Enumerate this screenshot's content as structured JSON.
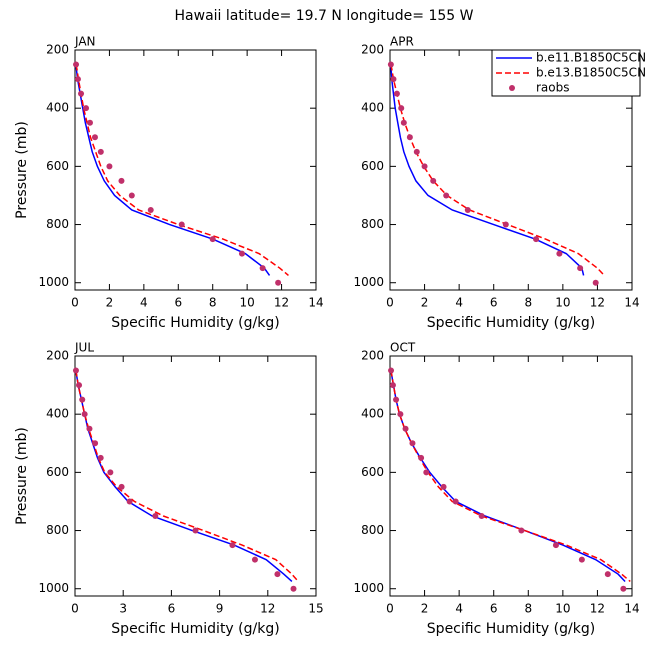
{
  "title": "Hawaii  latitude= 19.7 N longitude= 155 W",
  "chart_data": [
    {
      "type": "line",
      "title": "JAN",
      "xlabel": "Specific Humidity (g/kg)",
      "ylabel": "Pressure (mb)",
      "xlim": [
        0,
        14
      ],
      "xticks": [
        0,
        2,
        4,
        6,
        8,
        10,
        12,
        14
      ],
      "ylim": [
        1025,
        200
      ],
      "yticks": [
        200,
        400,
        600,
        800,
        1000
      ],
      "series": [
        {
          "color": "#0000ff",
          "style": "solid",
          "y": [
            250,
            300,
            350,
            400,
            450,
            500,
            550,
            600,
            650,
            700,
            750,
            800,
            850,
            900,
            950,
            975
          ],
          "x": [
            0.05,
            0.15,
            0.3,
            0.45,
            0.6,
            0.8,
            1.0,
            1.3,
            1.7,
            2.3,
            3.3,
            5.5,
            8.0,
            9.9,
            11.0,
            11.3
          ]
        },
        {
          "color": "#ff0000",
          "style": "dashed",
          "y": [
            250,
            300,
            350,
            400,
            450,
            500,
            550,
            600,
            650,
            700,
            750,
            800,
            850,
            900,
            950,
            975
          ],
          "x": [
            0.07,
            0.2,
            0.35,
            0.5,
            0.7,
            0.9,
            1.2,
            1.5,
            1.9,
            2.6,
            3.7,
            6.0,
            8.6,
            10.7,
            11.9,
            12.4
          ]
        },
        {
          "color": "#c0306a",
          "style": "dots",
          "y": [
            250,
            300,
            350,
            400,
            450,
            500,
            550,
            600,
            650,
            700,
            750,
            800,
            850,
            900,
            950,
            1000
          ],
          "x": [
            0.06,
            0.17,
            0.35,
            0.64,
            0.87,
            1.16,
            1.5,
            2.0,
            2.7,
            3.3,
            4.4,
            6.2,
            8.0,
            9.7,
            10.9,
            11.8
          ]
        }
      ]
    },
    {
      "type": "line",
      "title": "APR",
      "xlabel": "Specific Humidity (g/kg)",
      "xlim": [
        0,
        14
      ],
      "xticks": [
        0,
        2,
        4,
        6,
        8,
        10,
        12,
        14
      ],
      "ylim": [
        1025,
        200
      ],
      "yticks": [
        200,
        400,
        600,
        800,
        1000
      ],
      "legend": "upper right",
      "series": [
        {
          "name": "b.e11.B1850C5CN",
          "color": "#0000ff",
          "style": "solid",
          "y": [
            250,
            300,
            350,
            400,
            450,
            500,
            550,
            600,
            650,
            700,
            750,
            800,
            850,
            900,
            950,
            975
          ],
          "x": [
            0.05,
            0.1,
            0.2,
            0.3,
            0.45,
            0.6,
            0.8,
            1.1,
            1.5,
            2.2,
            3.6,
            6.0,
            8.4,
            10.2,
            11.1,
            11.2
          ]
        },
        {
          "name": "b.e13.B1850C5CN",
          "color": "#ff0000",
          "style": "dashed",
          "y": [
            250,
            300,
            350,
            400,
            450,
            500,
            550,
            600,
            650,
            700,
            750,
            800,
            850,
            900,
            950,
            975
          ],
          "x": [
            0.06,
            0.2,
            0.4,
            0.6,
            0.85,
            1.15,
            1.5,
            1.95,
            2.5,
            3.3,
            4.6,
            6.8,
            9.0,
            10.9,
            12.0,
            12.4
          ]
        },
        {
          "name": "raobs",
          "color": "#c0306a",
          "style": "dots",
          "y": [
            250,
            300,
            350,
            400,
            450,
            500,
            550,
            600,
            650,
            700,
            750,
            800,
            850,
            900,
            950,
            1000
          ],
          "x": [
            0.05,
            0.2,
            0.4,
            0.65,
            0.8,
            1.15,
            1.55,
            2.0,
            2.5,
            3.25,
            4.5,
            6.7,
            8.45,
            9.8,
            11.0,
            11.9
          ]
        }
      ]
    },
    {
      "type": "line",
      "title": "JUL",
      "xlabel": "Specific Humidity (g/kg)",
      "ylabel": "Pressure (mb)",
      "xlim": [
        0,
        15
      ],
      "xticks": [
        0,
        3,
        6,
        9,
        12,
        15
      ],
      "ylim": [
        1025,
        200
      ],
      "yticks": [
        200,
        400,
        600,
        800,
        1000
      ],
      "series": [
        {
          "color": "#0000ff",
          "style": "solid",
          "y": [
            250,
            300,
            350,
            400,
            450,
            500,
            550,
            600,
            650,
            700,
            750,
            800,
            850,
            900,
            950,
            975
          ],
          "x": [
            0.05,
            0.2,
            0.4,
            0.6,
            0.8,
            1.1,
            1.4,
            1.8,
            2.5,
            3.3,
            4.8,
            7.3,
            9.9,
            11.9,
            13.0,
            13.5
          ]
        },
        {
          "color": "#ff0000",
          "style": "dashed",
          "y": [
            250,
            300,
            350,
            400,
            450,
            500,
            550,
            600,
            650,
            700,
            750,
            800,
            850,
            900,
            950,
            975
          ],
          "x": [
            0.06,
            0.2,
            0.4,
            0.6,
            0.85,
            1.15,
            1.45,
            1.85,
            2.6,
            3.7,
            5.5,
            8.0,
            10.4,
            12.5,
            13.5,
            13.9
          ]
        },
        {
          "color": "#c0306a",
          "style": "dots",
          "y": [
            250,
            300,
            350,
            400,
            450,
            500,
            550,
            600,
            650,
            700,
            750,
            800,
            850,
            900,
            950,
            1000
          ],
          "x": [
            0.06,
            0.25,
            0.45,
            0.6,
            0.9,
            1.25,
            1.6,
            2.2,
            2.9,
            3.4,
            5.0,
            7.5,
            9.8,
            11.2,
            12.6,
            13.6
          ]
        }
      ]
    },
    {
      "type": "line",
      "title": "OCT",
      "xlabel": "Specific Humidity (g/kg)",
      "xlim": [
        0,
        14
      ],
      "xticks": [
        0,
        2,
        4,
        6,
        8,
        10,
        12,
        14
      ],
      "ylim": [
        1025,
        200
      ],
      "yticks": [
        200,
        400,
        600,
        800,
        1000
      ],
      "series": [
        {
          "color": "#0000ff",
          "style": "solid",
          "y": [
            250,
            300,
            350,
            400,
            450,
            500,
            550,
            600,
            650,
            700,
            750,
            800,
            850,
            900,
            950,
            975
          ],
          "x": [
            0.05,
            0.2,
            0.35,
            0.55,
            0.85,
            1.25,
            1.75,
            2.3,
            3.0,
            3.8,
            5.5,
            7.8,
            10.0,
            11.9,
            13.2,
            13.6
          ]
        },
        {
          "color": "#ff0000",
          "style": "dashed",
          "y": [
            250,
            300,
            350,
            400,
            450,
            500,
            550,
            600,
            650,
            700,
            750,
            800,
            850,
            900,
            950,
            975
          ],
          "x": [
            0.06,
            0.2,
            0.35,
            0.55,
            0.85,
            1.25,
            1.7,
            2.2,
            2.8,
            3.6,
            5.3,
            7.8,
            10.2,
            12.2,
            13.4,
            13.9
          ]
        },
        {
          "color": "#c0306a",
          "style": "dots",
          "y": [
            250,
            300,
            350,
            400,
            450,
            500,
            550,
            600,
            650,
            700,
            750,
            800,
            850,
            900,
            950,
            1000
          ],
          "x": [
            0.06,
            0.17,
            0.35,
            0.6,
            0.9,
            1.3,
            1.8,
            2.1,
            3.1,
            3.8,
            5.3,
            7.6,
            9.6,
            11.1,
            12.6,
            13.5
          ]
        }
      ]
    }
  ]
}
